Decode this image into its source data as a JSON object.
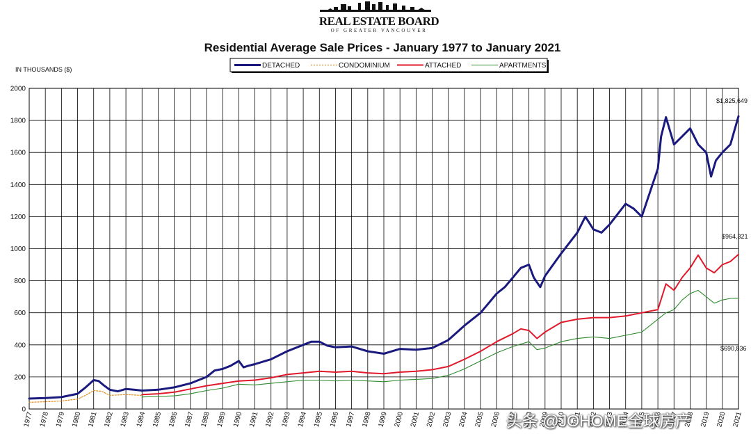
{
  "header": {
    "logo_text": "REAL ESTATE BOARD",
    "logo_subtext": "OF GREATER VANCOUVER"
  },
  "watermark": "头条 @JOHOME全球房产",
  "chart_data": {
    "type": "line",
    "title": "Residential Average Sale Prices  -  January 1977 to January 2021",
    "ylabel": "IN THOUSANDS ($)",
    "xlabel": "",
    "ylim": [
      0,
      2000
    ],
    "yticks": [
      0,
      200,
      400,
      600,
      800,
      1000,
      1200,
      1400,
      1600,
      1800,
      2000
    ],
    "xlim": [
      1977,
      2021
    ],
    "grid": true,
    "legend_position": "top-center",
    "categories": [
      "1977",
      "1978",
      "1979",
      "1980",
      "1981",
      "1982",
      "1983",
      "1984",
      "1985",
      "1986",
      "1987",
      "1988",
      "1989",
      "1990",
      "1991",
      "1992",
      "1993",
      "1994",
      "1995",
      "1996",
      "1997",
      "1998",
      "1999",
      "2000",
      "2001",
      "2002",
      "2003",
      "2004",
      "2005",
      "2006",
      "2007",
      "2008",
      "2009",
      "2010",
      "2011",
      "2012",
      "2013",
      "2014",
      "2015",
      "2016",
      "2017",
      "2018",
      "2019",
      "2020",
      "2021"
    ],
    "series": [
      {
        "name": "DETACHED",
        "color": "#1a1a7e",
        "style": "solid",
        "width": 3,
        "x": [
          1977,
          1978,
          1979,
          1980,
          1980.5,
          1981,
          1981.3,
          1981.6,
          1982,
          1982.5,
          1983,
          1983.5,
          1984,
          1985,
          1986,
          1987,
          1988,
          1988.5,
          1989,
          1989.5,
          1990,
          1990.3,
          1990.6,
          1991,
          1992,
          1993,
          1994,
          1994.5,
          1995,
          1995.5,
          1996,
          1997,
          1998,
          1999,
          2000,
          2001,
          2002,
          2003,
          2004,
          2005,
          2006,
          2006.5,
          2007,
          2007.5,
          2008,
          2008.3,
          2008.7,
          2009,
          2009.5,
          2010,
          2011,
          2011.5,
          2012,
          2012.5,
          2013,
          2014,
          2014.5,
          2015,
          2015.5,
          2016,
          2016.2,
          2016.5,
          2017,
          2017.5,
          2018,
          2018.5,
          2019,
          2019.3,
          2019.6,
          2020,
          2020.5,
          2021
        ],
        "values": [
          65,
          68,
          74,
          95,
          135,
          180,
          175,
          150,
          120,
          110,
          125,
          120,
          115,
          120,
          135,
          160,
          200,
          240,
          250,
          270,
          300,
          260,
          270,
          280,
          310,
          360,
          400,
          420,
          420,
          395,
          385,
          390,
          360,
          345,
          375,
          370,
          380,
          430,
          520,
          600,
          720,
          760,
          820,
          880,
          900,
          820,
          760,
          830,
          900,
          970,
          1100,
          1200,
          1120,
          1100,
          1150,
          1280,
          1250,
          1200,
          1350,
          1500,
          1700,
          1820,
          1650,
          1700,
          1750,
          1650,
          1600,
          1450,
          1550,
          1600,
          1650,
          1825.649
        ]
      },
      {
        "name": "CONDOMINIUM",
        "color": "#e08a1e",
        "style": "dotted",
        "width": 1.2,
        "x": [
          1977,
          1978,
          1979,
          1980,
          1980.5,
          1981,
          1981.5,
          1982,
          1983,
          1984
        ],
        "values": [
          42,
          45,
          50,
          62,
          85,
          115,
          110,
          85,
          90,
          85
        ]
      },
      {
        "name": "ATTACHED",
        "color": "#e0192b",
        "style": "solid",
        "width": 2,
        "x": [
          1984,
          1985,
          1986,
          1987,
          1988,
          1989,
          1990,
          1991,
          1992,
          1993,
          1994,
          1995,
          1996,
          1997,
          1998,
          1999,
          2000,
          2001,
          2002,
          2003,
          2004,
          2005,
          2006,
          2007,
          2007.5,
          2008,
          2008.5,
          2009,
          2010,
          2011,
          2012,
          2013,
          2014,
          2015,
          2016,
          2016.5,
          2017,
          2017.5,
          2018,
          2018.5,
          2019,
          2019.5,
          2020,
          2020.5,
          2021
        ],
        "values": [
          90,
          95,
          105,
          125,
          145,
          160,
          175,
          180,
          195,
          215,
          225,
          235,
          230,
          235,
          225,
          220,
          230,
          235,
          245,
          265,
          310,
          360,
          420,
          470,
          500,
          490,
          440,
          480,
          540,
          560,
          570,
          570,
          580,
          600,
          620,
          780,
          740,
          820,
          880,
          960,
          880,
          850,
          900,
          920,
          964.321
        ]
      },
      {
        "name": "APARTMENTS",
        "color": "#2d8a2d",
        "style": "solid",
        "width": 1.1,
        "x": [
          1984,
          1985,
          1986,
          1987,
          1988,
          1989,
          1990,
          1991,
          1992,
          1993,
          1994,
          1995,
          1996,
          1997,
          1998,
          1999,
          2000,
          2001,
          2002,
          2003,
          2004,
          2005,
          2006,
          2007,
          2008,
          2008.5,
          2009,
          2010,
          2011,
          2012,
          2013,
          2014,
          2015,
          2016,
          2016.5,
          2017,
          2017.5,
          2018,
          2018.5,
          2019,
          2019.5,
          2020,
          2020.5,
          2021
        ],
        "values": [
          75,
          78,
          82,
          95,
          115,
          130,
          155,
          150,
          160,
          170,
          180,
          180,
          175,
          180,
          175,
          170,
          180,
          185,
          190,
          210,
          250,
          300,
          350,
          390,
          420,
          370,
          380,
          420,
          440,
          450,
          440,
          460,
          480,
          560,
          600,
          620,
          680,
          720,
          740,
          700,
          660,
          680,
          690,
          690.836
        ]
      }
    ],
    "annotations": [
      {
        "text": "$1,825,649",
        "series": "DETACHED"
      },
      {
        "text": "$964,321",
        "series": "ATTACHED"
      },
      {
        "text": "$690,836",
        "series": "APARTMENTS"
      }
    ]
  }
}
